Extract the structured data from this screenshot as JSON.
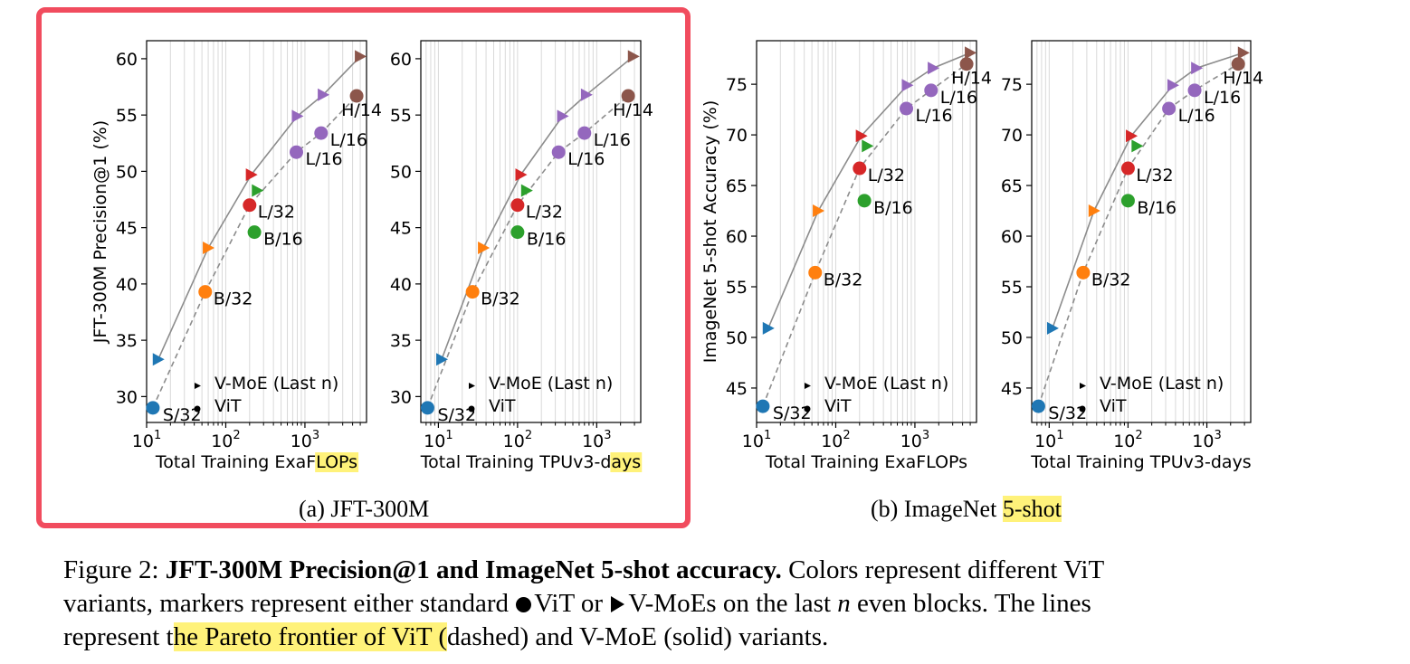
{
  "colors": {
    "S/32": "#1f77b4",
    "B/32": "#ff7f0e",
    "B/16": "#2ca02c",
    "L/32": "#d62728",
    "L/16": "#9467bd",
    "H/14": "#8c564b",
    "frontier": "#8c8c8c",
    "highlight": "#fff27a",
    "selection_box": "#f14c5e"
  },
  "subcaptions": {
    "a": "(a) JFT-300M",
    "b_prefix": "(b) ImageNet ",
    "b_highlight": "5-shot"
  },
  "caption": {
    "prefix": "Figure 2: ",
    "bold": "JFT-300M Precision@1 and ImageNet 5-shot accuracy.",
    "line1_rest": " Colors represent different ViT",
    "line2_a": "variants, markers represent either standard ",
    "line2_b": "ViT or ",
    "line2_c": "V-MoEs on the last ",
    "line2_var": "n",
    "line2_d": " even blocks. The lines",
    "line3_a": "represent t",
    "line3_hl": "he Pareto frontier of ViT (",
    "line3_b": "dashed) and V-MoE (solid) variants."
  },
  "chart_data": [
    {
      "type": "scatter",
      "ylabel": "JFT-300M Precision@1 (%)",
      "xlabel": "Total Training ExaFLOPs",
      "xlabel_plain": "Total Training ExaF",
      "xlabel_highlight": "LOPs",
      "xscale": "log",
      "xlim": [
        10,
        6000
      ],
      "ylim": [
        27.7,
        61.6
      ],
      "xticks": [
        {
          "v": 10,
          "base": "10",
          "exp": "1"
        },
        {
          "v": 100,
          "base": "10",
          "exp": "2"
        },
        {
          "v": 1000,
          "base": "10",
          "exp": "3"
        }
      ],
      "yticks": [
        30,
        35,
        40,
        45,
        50,
        55,
        60
      ],
      "grid": "vertical-minor",
      "legend": {
        "position": "lower-right",
        "entries": [
          "V-MoE (Last n)",
          "ViT"
        ]
      },
      "series": [
        {
          "name": "ViT",
          "marker": "circle",
          "points": [
            {
              "variant": "S/32",
              "x": 12,
              "y": 29.0,
              "label": "S/32"
            },
            {
              "variant": "B/32",
              "x": 55,
              "y": 39.3,
              "label": "B/32"
            },
            {
              "variant": "B/16",
              "x": 230,
              "y": 44.6,
              "label": "B/16"
            },
            {
              "variant": "L/32",
              "x": 200,
              "y": 47.0,
              "label": "L/32"
            },
            {
              "variant": "L/16",
              "x": 780,
              "y": 51.7,
              "label": "L/16"
            },
            {
              "variant": "L/16",
              "x": 1600,
              "y": 53.4,
              "label": "L/16"
            },
            {
              "variant": "H/14",
              "x": 4500,
              "y": 56.7,
              "label": "H/14"
            }
          ]
        },
        {
          "name": "V-MoE (Last n)",
          "marker": "triangle-right",
          "points": [
            {
              "variant": "S/32",
              "x": 14,
              "y": 33.3
            },
            {
              "variant": "B/32",
              "x": 60,
              "y": 43.2
            },
            {
              "variant": "B/16",
              "x": 250,
              "y": 48.3
            },
            {
              "variant": "L/32",
              "x": 210,
              "y": 49.7
            },
            {
              "variant": "L/16",
              "x": 800,
              "y": 54.9
            },
            {
              "variant": "L/16",
              "x": 1700,
              "y": 56.8
            },
            {
              "variant": "H/14",
              "x": 5000,
              "y": 60.2
            }
          ]
        }
      ],
      "frontier_vit": [
        [
          12,
          29.0
        ],
        [
          55,
          39.3
        ],
        [
          200,
          47.0
        ],
        [
          780,
          51.7
        ],
        [
          1600,
          53.4
        ],
        [
          4500,
          56.7
        ]
      ],
      "frontier_vmoe": [
        [
          14,
          33.3
        ],
        [
          60,
          43.2
        ],
        [
          210,
          49.7
        ],
        [
          800,
          54.9
        ],
        [
          1700,
          56.8
        ],
        [
          5000,
          60.2
        ]
      ]
    },
    {
      "type": "scatter",
      "xlabel": "Total Training TPUv3-days",
      "xlabel_plain": "Total Training TPUv3-d",
      "xlabel_highlight": "ays",
      "xscale": "log",
      "xlim": [
        6,
        3600
      ],
      "ylim": [
        27.7,
        61.6
      ],
      "xticks": [
        {
          "v": 10,
          "base": "10",
          "exp": "1"
        },
        {
          "v": 100,
          "base": "10",
          "exp": "2"
        },
        {
          "v": 1000,
          "base": "10",
          "exp": "3"
        }
      ],
      "yticks": [
        30,
        35,
        40,
        45,
        50,
        55,
        60
      ],
      "grid": "vertical-minor",
      "legend": {
        "position": "lower-right",
        "entries": [
          "V-MoE (Last n)",
          "ViT"
        ]
      },
      "series": [
        {
          "name": "ViT",
          "marker": "circle",
          "points": [
            {
              "variant": "S/32",
              "x": 7.3,
              "y": 29.0,
              "label": "S/32"
            },
            {
              "variant": "B/32",
              "x": 27,
              "y": 39.3,
              "label": "B/32"
            },
            {
              "variant": "B/16",
              "x": 100,
              "y": 44.6,
              "label": "B/16"
            },
            {
              "variant": "L/32",
              "x": 100,
              "y": 47.0,
              "label": "L/32"
            },
            {
              "variant": "L/16",
              "x": 330,
              "y": 51.7,
              "label": "L/16"
            },
            {
              "variant": "L/16",
              "x": 700,
              "y": 53.4,
              "label": "L/16"
            },
            {
              "variant": "H/14",
              "x": 2500,
              "y": 56.7,
              "label": "H/14"
            }
          ]
        },
        {
          "name": "V-MoE (Last n)",
          "marker": "triangle-right",
          "points": [
            {
              "variant": "S/32",
              "x": 11,
              "y": 33.3
            },
            {
              "variant": "B/32",
              "x": 37,
              "y": 43.2
            },
            {
              "variant": "B/16",
              "x": 130,
              "y": 48.3
            },
            {
              "variant": "L/32",
              "x": 110,
              "y": 49.7
            },
            {
              "variant": "L/16",
              "x": 370,
              "y": 54.9
            },
            {
              "variant": "L/16",
              "x": 740,
              "y": 56.8
            },
            {
              "variant": "H/14",
              "x": 2900,
              "y": 60.2
            }
          ]
        }
      ],
      "frontier_vit": [
        [
          7.3,
          29.0
        ],
        [
          27,
          39.3
        ],
        [
          100,
          47.0
        ],
        [
          330,
          51.7
        ],
        [
          700,
          53.4
        ],
        [
          2500,
          56.7
        ]
      ],
      "frontier_vmoe": [
        [
          11,
          33.3
        ],
        [
          37,
          43.2
        ],
        [
          110,
          49.7
        ],
        [
          370,
          54.9
        ],
        [
          740,
          56.8
        ],
        [
          2900,
          60.2
        ]
      ]
    },
    {
      "type": "scatter",
      "ylabel": "ImageNet 5-shot Accuracy (%)",
      "xlabel": "Total Training ExaFLOPs",
      "xscale": "log",
      "xlim": [
        10,
        6000
      ],
      "ylim": [
        41.6,
        79.3
      ],
      "xticks": [
        {
          "v": 10,
          "base": "10",
          "exp": "1"
        },
        {
          "v": 100,
          "base": "10",
          "exp": "2"
        },
        {
          "v": 1000,
          "base": "10",
          "exp": "3"
        }
      ],
      "yticks": [
        45,
        50,
        55,
        60,
        65,
        70,
        75
      ],
      "grid": "vertical-minor",
      "legend": {
        "position": "lower-right",
        "entries": [
          "V-MoE (Last n)",
          "ViT"
        ]
      },
      "series": [
        {
          "name": "ViT",
          "marker": "circle",
          "points": [
            {
              "variant": "S/32",
              "x": 12,
              "y": 43.2,
              "label": "S/32"
            },
            {
              "variant": "B/32",
              "x": 55,
              "y": 56.4,
              "label": "B/32"
            },
            {
              "variant": "B/16",
              "x": 230,
              "y": 63.5,
              "label": "B/16"
            },
            {
              "variant": "L/32",
              "x": 200,
              "y": 66.7,
              "label": "L/32"
            },
            {
              "variant": "L/16",
              "x": 780,
              "y": 72.6,
              "label": "L/16"
            },
            {
              "variant": "L/16",
              "x": 1600,
              "y": 74.4,
              "label": "L/16"
            },
            {
              "variant": "H/14",
              "x": 4500,
              "y": 77.0,
              "label": "H/14"
            }
          ]
        },
        {
          "name": "V-MoE (Last n)",
          "marker": "triangle-right",
          "points": [
            {
              "variant": "S/32",
              "x": 14,
              "y": 50.9
            },
            {
              "variant": "B/32",
              "x": 60,
              "y": 62.5
            },
            {
              "variant": "B/16",
              "x": 250,
              "y": 68.9
            },
            {
              "variant": "L/32",
              "x": 210,
              "y": 69.9
            },
            {
              "variant": "L/16",
              "x": 800,
              "y": 74.9
            },
            {
              "variant": "L/16",
              "x": 1700,
              "y": 76.6
            },
            {
              "variant": "H/14",
              "x": 5000,
              "y": 78.1
            }
          ]
        }
      ],
      "frontier_vit": [
        [
          12,
          43.2
        ],
        [
          55,
          56.4
        ],
        [
          200,
          66.7
        ],
        [
          780,
          72.6
        ],
        [
          1600,
          74.4
        ],
        [
          4500,
          77.0
        ]
      ],
      "frontier_vmoe": [
        [
          14,
          50.9
        ],
        [
          60,
          62.5
        ],
        [
          210,
          69.9
        ],
        [
          800,
          74.9
        ],
        [
          1700,
          76.6
        ],
        [
          5000,
          78.1
        ]
      ]
    },
    {
      "type": "scatter",
      "xlabel": "Total Training TPUv3-days",
      "xscale": "log",
      "xlim": [
        6,
        3600
      ],
      "ylim": [
        41.6,
        79.3
      ],
      "xticks": [
        {
          "v": 10,
          "base": "10",
          "exp": "1"
        },
        {
          "v": 100,
          "base": "10",
          "exp": "2"
        },
        {
          "v": 1000,
          "base": "10",
          "exp": "3"
        }
      ],
      "yticks": [
        45,
        50,
        55,
        60,
        65,
        70,
        75
      ],
      "grid": "vertical-minor",
      "legend": {
        "position": "lower-right",
        "entries": [
          "V-MoE (Last n)",
          "ViT"
        ]
      },
      "series": [
        {
          "name": "ViT",
          "marker": "circle",
          "points": [
            {
              "variant": "S/32",
              "x": 7.3,
              "y": 43.2,
              "label": "S/32"
            },
            {
              "variant": "B/32",
              "x": 27,
              "y": 56.4,
              "label": "B/32"
            },
            {
              "variant": "B/16",
              "x": 100,
              "y": 63.5,
              "label": "B/16"
            },
            {
              "variant": "L/32",
              "x": 100,
              "y": 66.7,
              "label": "L/32"
            },
            {
              "variant": "L/16",
              "x": 330,
              "y": 72.6,
              "label": "L/16"
            },
            {
              "variant": "L/16",
              "x": 700,
              "y": 74.4,
              "label": "L/16"
            },
            {
              "variant": "H/14",
              "x": 2500,
              "y": 77.0,
              "label": "H/14"
            }
          ]
        },
        {
          "name": "V-MoE (Last n)",
          "marker": "triangle-right",
          "points": [
            {
              "variant": "S/32",
              "x": 11,
              "y": 50.9
            },
            {
              "variant": "B/32",
              "x": 37,
              "y": 62.5
            },
            {
              "variant": "B/16",
              "x": 130,
              "y": 68.9
            },
            {
              "variant": "L/32",
              "x": 110,
              "y": 69.9
            },
            {
              "variant": "L/16",
              "x": 370,
              "y": 74.9
            },
            {
              "variant": "L/16",
              "x": 740,
              "y": 76.6
            },
            {
              "variant": "H/14",
              "x": 2900,
              "y": 78.1
            }
          ]
        }
      ],
      "frontier_vit": [
        [
          7.3,
          43.2
        ],
        [
          27,
          56.4
        ],
        [
          100,
          66.7
        ],
        [
          330,
          72.6
        ],
        [
          700,
          74.4
        ],
        [
          2500,
          77.0
        ]
      ],
      "frontier_vmoe": [
        [
          11,
          50.9
        ],
        [
          37,
          62.5
        ],
        [
          110,
          69.9
        ],
        [
          370,
          74.9
        ],
        [
          740,
          76.6
        ],
        [
          2900,
          78.1
        ]
      ]
    }
  ]
}
